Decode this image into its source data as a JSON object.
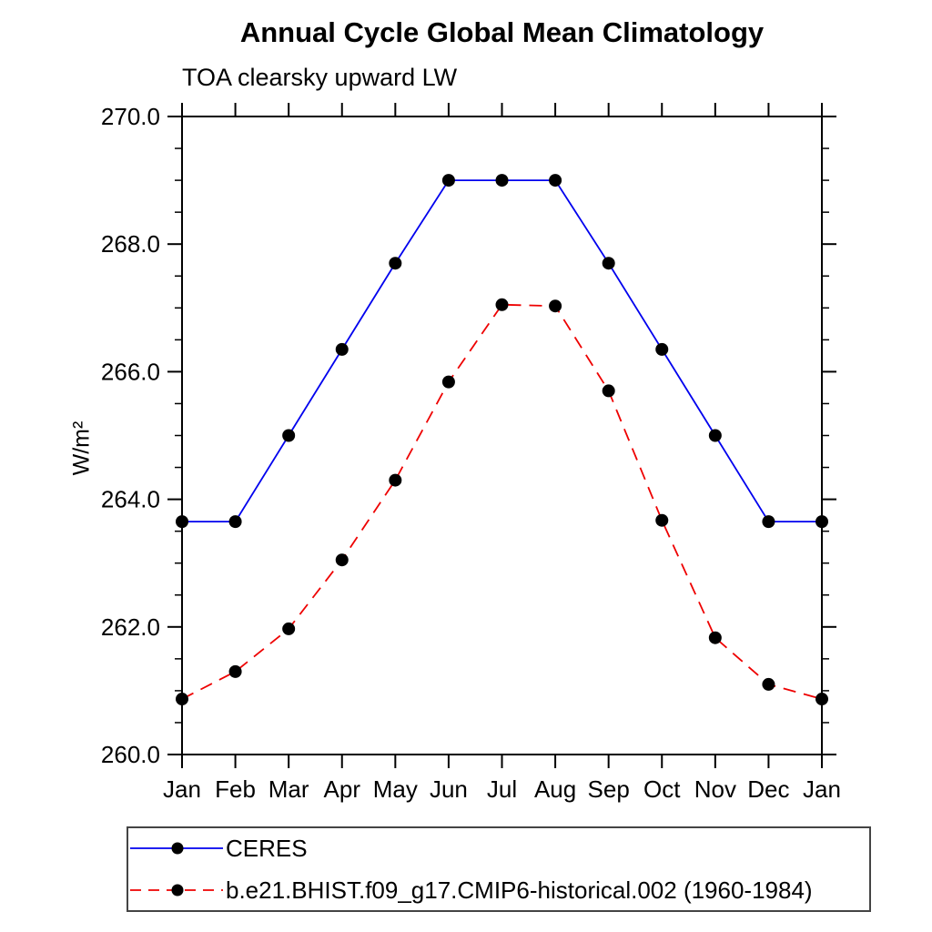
{
  "title": "Annual Cycle Global Mean Climatology",
  "subtitle": "TOA clearsky upward LW",
  "chart_data": {
    "type": "line",
    "title": "Annual Cycle Global Mean Climatology",
    "subtitle": "TOA clearsky upward LW",
    "xlabel": "",
    "ylabel": "W/m²",
    "categories": [
      "Jan",
      "Feb",
      "Mar",
      "Apr",
      "May",
      "Jun",
      "Jul",
      "Aug",
      "Sep",
      "Oct",
      "Nov",
      "Dec",
      "Jan"
    ],
    "ylim": [
      260.0,
      270.0
    ],
    "ytick_labels": [
      "260.0",
      "262.0",
      "264.0",
      "266.0",
      "268.0",
      "270.0"
    ],
    "ytick_values": [
      260.0,
      262.0,
      264.0,
      266.0,
      268.0,
      270.0
    ],
    "ytick_minor_step": 0.5,
    "grid": false,
    "legend_position": "bottom-left",
    "series": [
      {
        "name": "CERES",
        "color": "#0000ee",
        "line_style": "solid",
        "marker": "circle",
        "marker_color": "#000000",
        "values": [
          263.65,
          263.65,
          265.0,
          266.35,
          267.7,
          269.0,
          269.0,
          269.0,
          267.7,
          266.35,
          265.0,
          263.65,
          263.65
        ]
      },
      {
        "name": "b.e21.BHIST.f09_g17.CMIP6-historical.002 (1960-1984)",
        "color": "#ee0000",
        "line_style": "dashed",
        "marker": "circle",
        "marker_color": "#000000",
        "values": [
          260.87,
          261.3,
          261.97,
          263.05,
          264.3,
          265.84,
          267.05,
          267.03,
          265.7,
          263.67,
          261.83,
          261.1,
          260.87
        ]
      }
    ]
  }
}
